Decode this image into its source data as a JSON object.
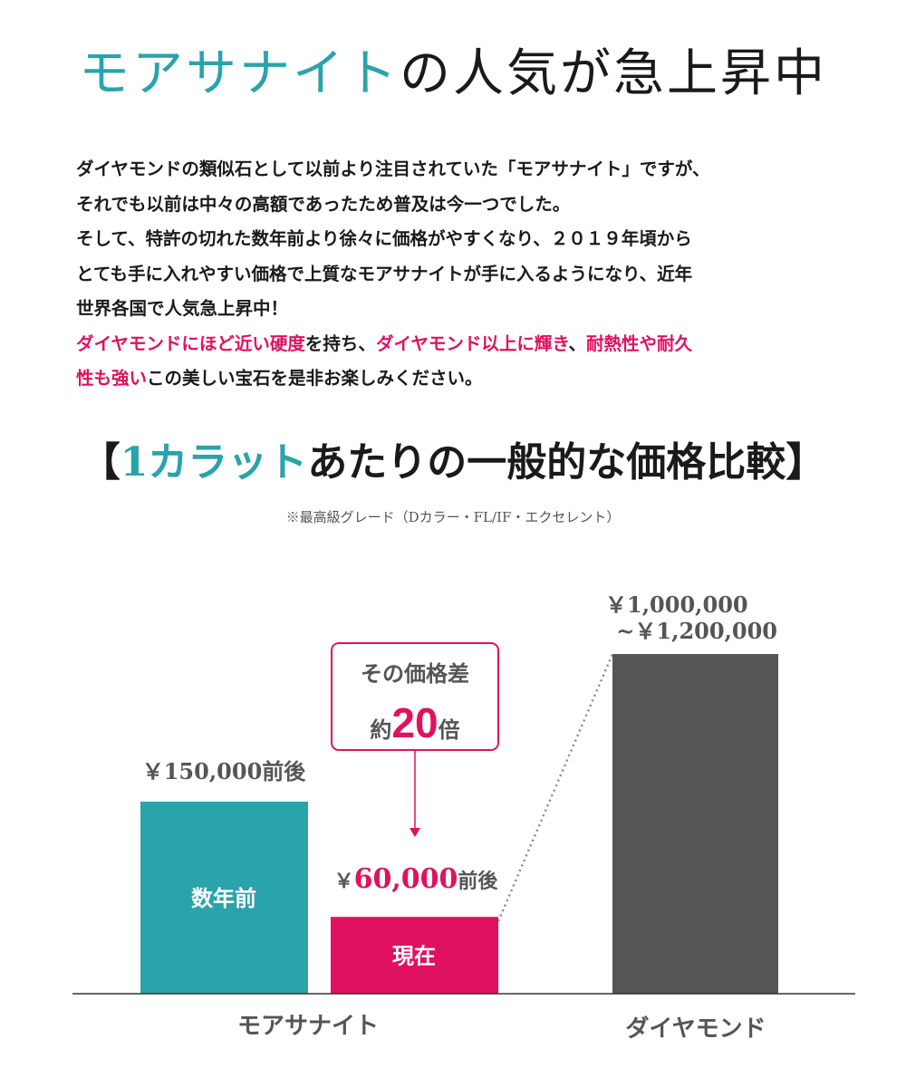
{
  "header": {
    "title_accent": "モアサナイト",
    "title_rest": "の人気が急上昇中"
  },
  "intro": {
    "lines": [
      [
        {
          "text": "ダイヤモンドの類似石として以前より注目されていた「モアサナイト」ですが、",
          "highlight": false
        }
      ],
      [
        {
          "text": "それでも以前は中々の高額であったため普及は今一つでした。",
          "highlight": false
        }
      ],
      [
        {
          "text": "そして、特許の切れた数年前より徐々に価格がやすくなり、２０１９年頃から",
          "highlight": false
        }
      ],
      [
        {
          "text": "とても手に入れやすい価格で上質なモアサナイトが手に入るようになり、近年",
          "highlight": false
        }
      ],
      [
        {
          "text": "世界各国で人気急上昇中！",
          "highlight": false
        }
      ],
      [
        {
          "text": "ダイヤモンドにほど近い硬度",
          "highlight": true
        },
        {
          "text": "を持ち、",
          "highlight": false
        },
        {
          "text": "ダイヤモンド以上に輝き",
          "highlight": true
        },
        {
          "text": "、",
          "highlight": false
        },
        {
          "text": "耐熱性や耐久",
          "highlight": true
        }
      ],
      [
        {
          "text": "性も強い",
          "highlight": true
        },
        {
          "text": "この美しい宝石を是非お楽しみください。",
          "highlight": false
        }
      ]
    ]
  },
  "section": {
    "bracket_open": "【",
    "title_accent": "1カラット",
    "title_rest": "あたりの一般的な価格比較",
    "bracket_close": "】",
    "note": "※最高級グレード（Dカラー・FL/IF・エクセレント）"
  },
  "colors": {
    "teal": "#2aa3ab",
    "pink": "#e0115f",
    "gray": "#555555",
    "text": "#1a1a1a"
  },
  "chart_data": {
    "type": "bar",
    "currency_unit": "¥",
    "categories": [
      "モアサナイト",
      "ダイヤモンド"
    ],
    "bars": [
      {
        "group": "モアサナイト",
        "label": "数年前",
        "value": 150000,
        "value_label": "￥150,000前後",
        "color": "#2aa3ab"
      },
      {
        "group": "モアサナイト",
        "label": "現在",
        "value": 60000,
        "value_label_num": "60,000",
        "value_label_prefix": "￥",
        "value_label_suffix": "前後",
        "color": "#e0115f"
      },
      {
        "group": "ダイヤモンド",
        "label": "",
        "value": 1000000,
        "value_max": 1200000,
        "value_label_line1": "￥1,000,000",
        "value_label_line2": "~￥1,200,000",
        "color": "#555555"
      }
    ],
    "callout": {
      "line1": "その価格差",
      "prefix": "約",
      "number": "20",
      "suffix": "倍"
    }
  }
}
